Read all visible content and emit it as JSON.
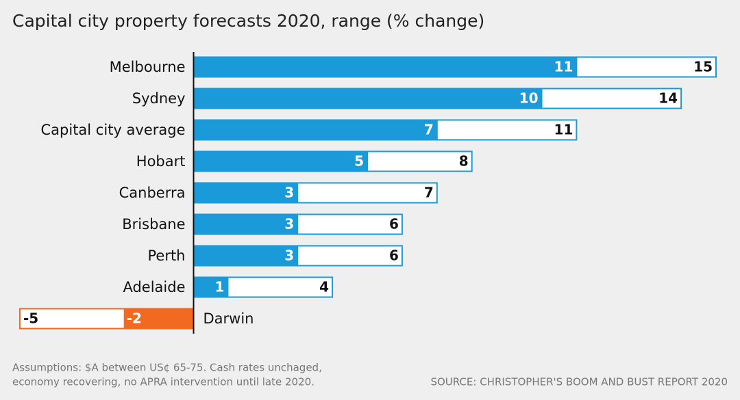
{
  "chart_data": {
    "type": "range_bar",
    "title": "Capital city property forecasts 2020, range (% change)",
    "categories": [
      "Melbourne",
      "Sydney",
      "Capital city average",
      "Hobart",
      "Canberra",
      "Brisbane",
      "Perth",
      "Adelaide",
      "Darwin"
    ],
    "series": [
      {
        "color": "#1a9ad9",
        "negative_color": "#f26a21",
        "values": [
          11,
          10,
          7,
          5,
          3,
          3,
          3,
          1,
          -2
        ]
      },
      {
        "color": "#ffffff",
        "values": [
          15,
          14,
          11,
          8,
          7,
          6,
          6,
          4,
          -5
        ]
      }
    ],
    "xlim": [
      -5,
      15
    ],
    "notes": [
      "Assumptions: $A between US¢ 65-75. Cash rates unchaged,",
      "economy recovering, no APRA intervention until late 2020."
    ],
    "source": "SOURCE: CHRISTOPHER'S BOOM AND BUST REPORT 2020"
  }
}
